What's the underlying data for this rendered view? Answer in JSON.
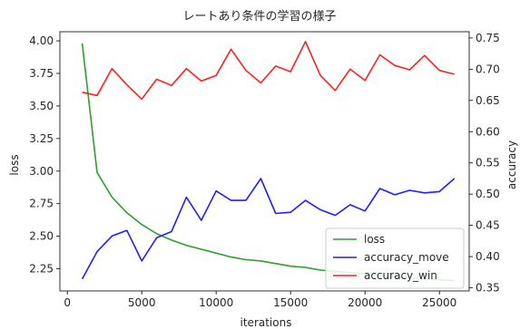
{
  "chart_data": {
    "type": "line",
    "title": "レートあり条件の学習の様子",
    "xlabel": "iterations",
    "ylabel_left": "loss",
    "ylabel_right": "accuracy",
    "xlim": [
      -500,
      27000
    ],
    "ylim_left": [
      2.08,
      4.07
    ],
    "ylim_right": [
      0.345,
      0.76
    ],
    "xticks": [
      0,
      5000,
      10000,
      15000,
      20000,
      25000
    ],
    "yticks_left": [
      2.25,
      2.5,
      2.75,
      3.0,
      3.25,
      3.5,
      3.75,
      4.0
    ],
    "yticks_right": [
      0.35,
      0.4,
      0.45,
      0.5,
      0.55,
      0.6,
      0.65,
      0.7,
      0.75
    ],
    "legend": [
      "loss",
      "accuracy_move",
      "accuracy_win"
    ],
    "legend_position": "lower right",
    "series": [
      {
        "name": "loss",
        "axis": "left",
        "color": "#2ca02c",
        "x": [
          1000,
          2000,
          3000,
          4000,
          5000,
          6000,
          7000,
          8000,
          9000,
          10000,
          11000,
          12000,
          13000,
          14000,
          15000,
          16000,
          17000,
          18000,
          19000,
          20000,
          21000,
          22000,
          23000,
          24000,
          25000,
          26000
        ],
        "y": [
          3.98,
          2.99,
          2.8,
          2.68,
          2.59,
          2.52,
          2.47,
          2.43,
          2.4,
          2.37,
          2.34,
          2.32,
          2.31,
          2.29,
          2.27,
          2.26,
          2.24,
          2.23,
          2.22,
          2.21,
          2.2,
          2.19,
          2.18,
          2.17,
          2.165,
          2.16
        ]
      },
      {
        "name": "accuracy_move",
        "axis": "right",
        "color": "#1f1fff",
        "x": [
          1000,
          2000,
          3000,
          4000,
          5000,
          6000,
          7000,
          8000,
          9000,
          10000,
          11000,
          12000,
          13000,
          14000,
          15000,
          16000,
          17000,
          18000,
          19000,
          20000,
          21000,
          22000,
          23000,
          24000,
          25000,
          26000
        ],
        "y": [
          0.364,
          0.408,
          0.433,
          0.442,
          0.393,
          0.43,
          0.44,
          0.495,
          0.458,
          0.505,
          0.49,
          0.49,
          0.525,
          0.469,
          0.471,
          0.49,
          0.475,
          0.466,
          0.483,
          0.473,
          0.509,
          0.499,
          0.506,
          0.502,
          0.504,
          0.525
        ]
      },
      {
        "name": "accuracy_win",
        "axis": "right",
        "color": "#ff2020",
        "x": [
          1000,
          2000,
          3000,
          4000,
          5000,
          6000,
          7000,
          8000,
          9000,
          10000,
          11000,
          12000,
          13000,
          14000,
          15000,
          16000,
          17000,
          18000,
          19000,
          20000,
          21000,
          22000,
          23000,
          24000,
          25000,
          26000
        ],
        "y": [
          0.663,
          0.658,
          0.701,
          0.675,
          0.652,
          0.684,
          0.674,
          0.701,
          0.681,
          0.69,
          0.732,
          0.698,
          0.678,
          0.705,
          0.696,
          0.744,
          0.69,
          0.666,
          0.7,
          0.682,
          0.723,
          0.706,
          0.699,
          0.722,
          0.698,
          0.692
        ]
      }
    ]
  }
}
